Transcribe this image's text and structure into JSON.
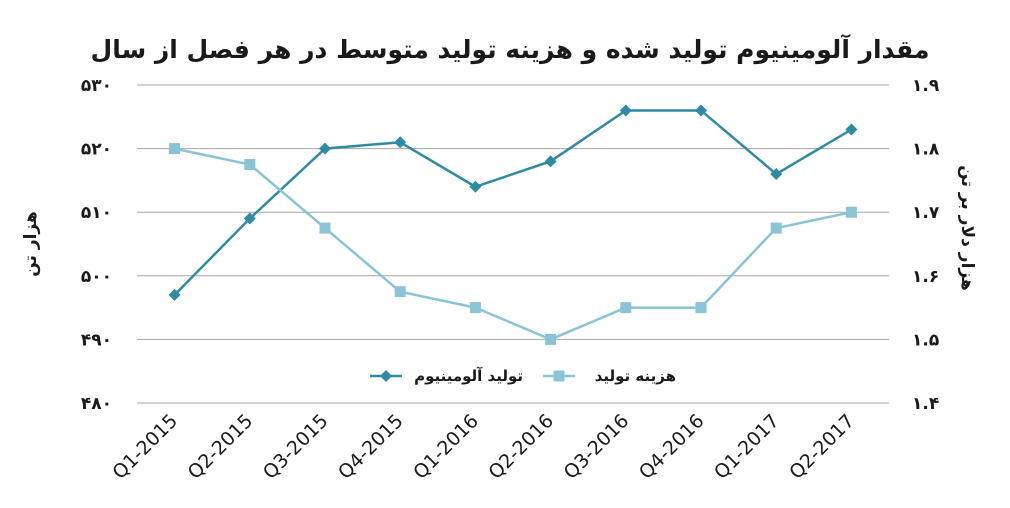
{
  "chart_data": {
    "type": "line",
    "title": "مقدار آلومینیوم تولید شده و هزینه تولید متوسط در هر فصل از سال",
    "categories": [
      "Q1-2015",
      "Q2-2015",
      "Q3-2015",
      "Q4-2015",
      "Q1-2016",
      "Q2-2016",
      "Q3-2016",
      "Q4-2016",
      "Q1-2017",
      "Q2-2017"
    ],
    "y_left": {
      "label": "هزار تن",
      "range": [
        480,
        530
      ],
      "ticks": [
        480,
        490,
        500,
        510,
        520,
        530
      ],
      "tick_labels": [
        "۴۸۰",
        "۴۹۰",
        "۵۰۰",
        "۵۱۰",
        "۵۲۰",
        "۵۳۰"
      ]
    },
    "y_right": {
      "label": "هزار دلار بر تن",
      "range": [
        1.4,
        1.9
      ],
      "ticks": [
        1.4,
        1.5,
        1.6,
        1.7,
        1.8,
        1.9
      ],
      "tick_labels": [
        "۱.۴",
        "۱.۵",
        "۱.۶",
        "۱.۷",
        "۱.۸",
        "۱.۹"
      ]
    },
    "series": [
      {
        "name": "تولید آلومینیوم",
        "axis": "left",
        "marker": "diamond",
        "color": "#2e8ba3",
        "values": [
          497,
          509,
          520,
          521,
          514,
          518,
          526,
          526,
          516,
          523
        ]
      },
      {
        "name": "هزینه تولید",
        "axis": "right",
        "marker": "square",
        "color": "#88c3d6",
        "values": [
          1.8,
          1.775,
          1.675,
          1.575,
          1.55,
          1.5,
          1.55,
          1.55,
          1.675,
          1.7
        ]
      }
    ],
    "grid": true,
    "legend_position": "bottom-center"
  }
}
